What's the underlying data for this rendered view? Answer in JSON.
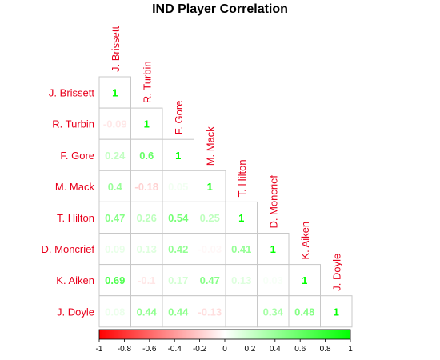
{
  "chart_data": {
    "type": "heatmap",
    "title": "IND Player Correlation",
    "variables": [
      "J. Brissett",
      "R. Turbin",
      "F. Gore",
      "M. Mack",
      "T. Hilton",
      "D. Moncrief",
      "K. Aiken",
      "J. Doyle"
    ],
    "matrix_lower": [
      [
        1
      ],
      [
        -0.09,
        1
      ],
      [
        0.24,
        0.6,
        1
      ],
      [
        0.4,
        -0.18,
        0.05,
        1
      ],
      [
        0.47,
        0.26,
        0.54,
        0.25,
        1
      ],
      [
        0.09,
        0.13,
        0.42,
        -0.03,
        0.41,
        1
      ],
      [
        0.69,
        -0.1,
        0.17,
        0.47,
        0.13,
        0.03,
        1
      ],
      [
        0.08,
        0.44,
        0.44,
        -0.13,
        0,
        0.34,
        0.48,
        1
      ]
    ],
    "colorbar": {
      "range": [
        -1,
        1
      ],
      "ticks": [
        "-1",
        "-0.8",
        "-0.6",
        "-0.4",
        "-0.2",
        "0",
        "0.2",
        "0.4",
        "0.6",
        "0.8",
        "1"
      ],
      "colors": {
        "low": "#ff0000",
        "mid": "#ffffff",
        "high": "#00ff00"
      }
    },
    "label_color": "#e8001c",
    "grid": true,
    "legend": "bottom"
  }
}
